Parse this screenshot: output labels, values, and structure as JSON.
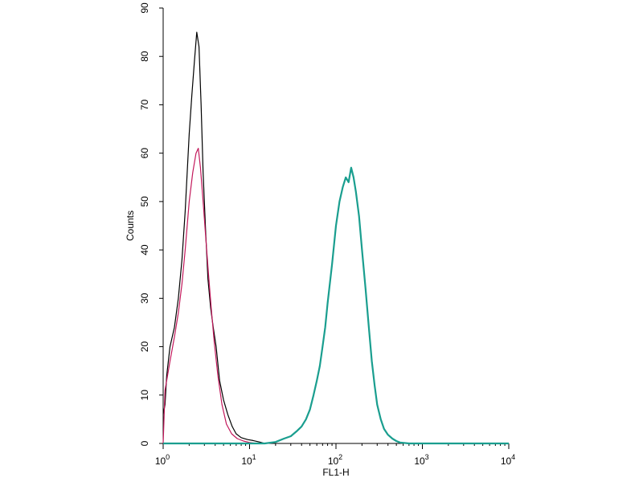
{
  "chart_data": {
    "type": "line",
    "title": "",
    "xlabel": "FL1-H",
    "ylabel": "Counts",
    "x_scale": "log",
    "xlim": [
      1,
      10000
    ],
    "ylim": [
      0,
      90
    ],
    "grid": false,
    "x_ticks": [
      {
        "value": 1,
        "base": "10",
        "exp": "0"
      },
      {
        "value": 10,
        "base": "10",
        "exp": "1"
      },
      {
        "value": 100,
        "base": "10",
        "exp": "2"
      },
      {
        "value": 1000,
        "base": "10",
        "exp": "3"
      },
      {
        "value": 10000,
        "base": "10",
        "exp": "4"
      }
    ],
    "y_ticks": [
      "0",
      "10",
      "20",
      "30",
      "40",
      "50",
      "60",
      "70",
      "80",
      "90"
    ],
    "series": [
      {
        "color": "#000000",
        "x": [
          1.0,
          1.05,
          1.1,
          1.2,
          1.35,
          1.5,
          1.65,
          1.8,
          2.0,
          2.15,
          2.3,
          2.45,
          2.6,
          2.75,
          2.9,
          3.1,
          3.3,
          3.55,
          3.8,
          4.1,
          4.5,
          5.0,
          5.6,
          6.3,
          7.0,
          8.0,
          9.5,
          11,
          13,
          15
        ],
        "y": [
          6,
          8,
          14,
          20,
          24,
          30,
          38,
          48,
          64,
          72,
          79,
          85,
          82,
          70,
          56,
          44,
          34,
          28,
          24,
          20,
          13,
          9,
          6,
          3.5,
          2,
          1.2,
          0.8,
          0.6,
          0.3,
          0
        ]
      },
      {
        "color": "#c2185b",
        "x": [
          1.0,
          1.05,
          1.1,
          1.2,
          1.35,
          1.5,
          1.65,
          1.8,
          2.0,
          2.2,
          2.4,
          2.55,
          2.7,
          2.9,
          3.1,
          3.35,
          3.6,
          3.9,
          4.3,
          4.8,
          5.4,
          6.2,
          7.2,
          8.5,
          10,
          12
        ],
        "y": [
          0,
          11,
          13,
          17,
          22,
          27,
          33,
          40,
          50,
          56,
          60,
          61,
          57,
          50,
          43,
          35,
          28,
          21,
          14,
          8,
          4,
          2,
          1,
          0.5,
          0.2,
          0
        ]
      },
      {
        "color": "#1a9e8f",
        "x": [
          1,
          15,
          20,
          25,
          30,
          35,
          40,
          45,
          50,
          55,
          60,
          65,
          70,
          75,
          80,
          90,
          100,
          110,
          120,
          130,
          140,
          150,
          160,
          170,
          185,
          200,
          220,
          240,
          260,
          280,
          300,
          330,
          360,
          400,
          450,
          500,
          550,
          700,
          10000
        ],
        "y": [
          0,
          0,
          0.3,
          1,
          1.5,
          2.5,
          3.5,
          5,
          7,
          10,
          13,
          16,
          20,
          24,
          29,
          37,
          45,
          50,
          53,
          55,
          54,
          57,
          55,
          52,
          47,
          40,
          32,
          24,
          17,
          12,
          8,
          5,
          3,
          1.8,
          1,
          0.5,
          0.2,
          0,
          0
        ]
      }
    ]
  }
}
